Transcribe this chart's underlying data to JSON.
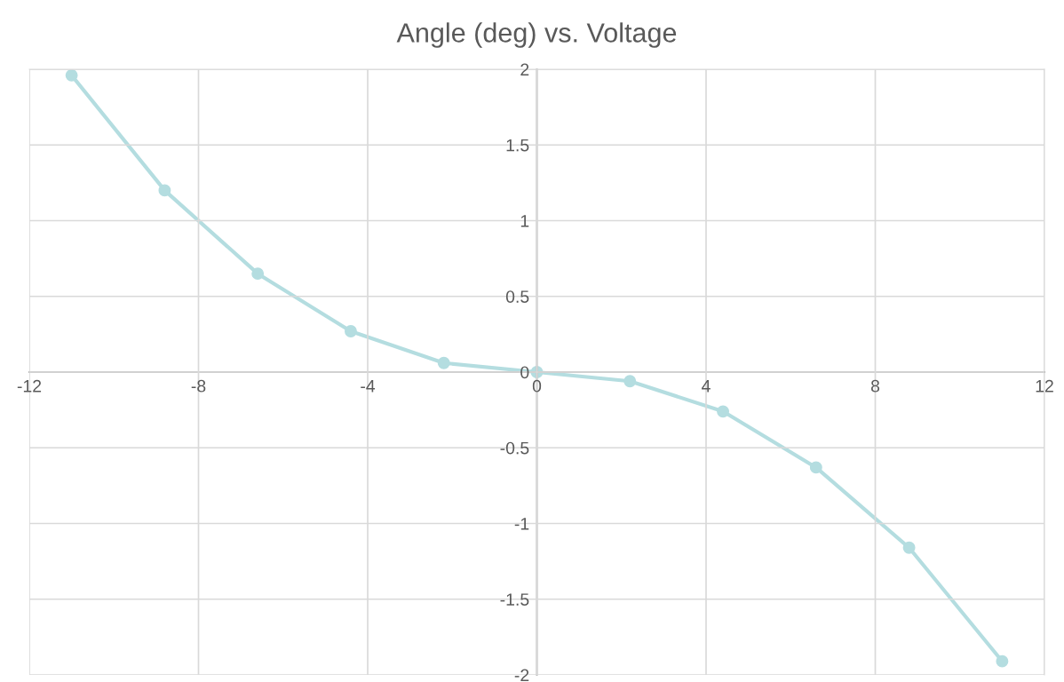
{
  "chart_data": {
    "type": "line",
    "title": "Angle (deg) vs. Voltage",
    "x": [
      -11,
      -8.8,
      -6.6,
      -4.4,
      -2.2,
      0,
      2.2,
      4.4,
      6.6,
      8.8,
      11
    ],
    "series": [
      {
        "color": "#b4dde0",
        "values": [
          1.96,
          1.2,
          0.65,
          0.27,
          0.06,
          0,
          -0.06,
          -0.26,
          -0.63,
          -1.16,
          -1.91
        ]
      }
    ],
    "xlim": [
      -12,
      12
    ],
    "xticks": [
      -12,
      -8,
      -4,
      0,
      4,
      8,
      12
    ],
    "ylim": [
      -2,
      2
    ],
    "yticks": [
      -2,
      -1.5,
      -1,
      -0.5,
      0,
      0.5,
      1,
      1.5,
      2
    ],
    "grid": true,
    "marker": "circle",
    "line_style": "solid",
    "legend": false
  }
}
